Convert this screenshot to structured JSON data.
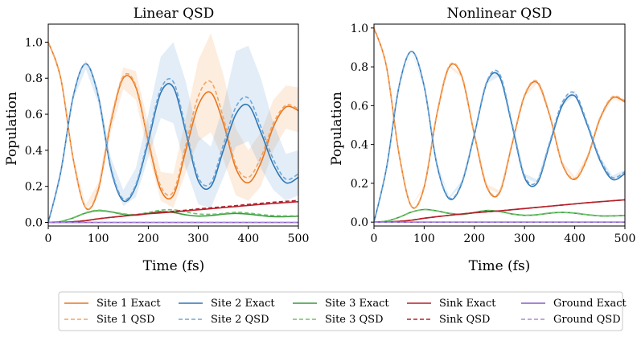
{
  "figure": {
    "legend": {
      "entries": [
        {
          "label": "Site 1 Exact",
          "series": "site1",
          "style": "solid"
        },
        {
          "label": "Site 1 QSD",
          "series": "site1",
          "style": "dashed"
        },
        {
          "label": "Site 2 Exact",
          "series": "site2",
          "style": "solid"
        },
        {
          "label": "Site 2 QSD",
          "series": "site2",
          "style": "dashed"
        },
        {
          "label": "Site 3 Exact",
          "series": "site3",
          "style": "solid"
        },
        {
          "label": "Site 3 QSD",
          "series": "site3",
          "style": "dashed"
        },
        {
          "label": "Sink Exact",
          "series": "sink",
          "style": "solid"
        },
        {
          "label": "Sink QSD",
          "series": "sink",
          "style": "dashed"
        },
        {
          "label": "Ground Exact",
          "series": "ground",
          "style": "solid"
        },
        {
          "label": "Ground QSD",
          "series": "ground",
          "style": "dashed"
        }
      ]
    }
  },
  "chart_data": [
    {
      "type": "line",
      "title": "Linear QSD",
      "xlabel": "Time (fs)",
      "ylabel": "Population",
      "xlim": [
        0,
        500
      ],
      "ylim": [
        -0.02,
        1.1
      ],
      "xticks": [
        "0",
        "100",
        "200",
        "300",
        "400",
        "500"
      ],
      "yticks": [
        "0.0",
        "0.2",
        "0.4",
        "0.6",
        "0.8",
        "1.0"
      ],
      "x": [
        0,
        25,
        50,
        75,
        100,
        125,
        150,
        175,
        200,
        225,
        250,
        275,
        300,
        325,
        350,
        375,
        400,
        425,
        450,
        475,
        500
      ],
      "series": [
        {
          "name": "Site 1 Exact",
          "key": "site1",
          "color": "#e8761f",
          "style": "solid",
          "values": [
            1.0,
            0.8,
            0.35,
            0.08,
            0.18,
            0.55,
            0.8,
            0.75,
            0.45,
            0.18,
            0.15,
            0.4,
            0.65,
            0.72,
            0.55,
            0.3,
            0.22,
            0.33,
            0.53,
            0.64,
            0.62
          ]
        },
        {
          "name": "Site 1 QSD",
          "key": "site1",
          "color": "#f4a460",
          "style": "dashed",
          "values": [
            1.0,
            0.8,
            0.35,
            0.08,
            0.19,
            0.56,
            0.81,
            0.76,
            0.46,
            0.2,
            0.17,
            0.43,
            0.7,
            0.78,
            0.58,
            0.32,
            0.25,
            0.36,
            0.55,
            0.65,
            0.63
          ],
          "band_lower": [
            1.0,
            0.79,
            0.34,
            0.07,
            0.15,
            0.5,
            0.74,
            0.68,
            0.38,
            0.12,
            0.08,
            0.28,
            0.45,
            0.5,
            0.35,
            0.15,
            0.12,
            0.2,
            0.4,
            0.52,
            0.5
          ],
          "band_upper": [
            1.0,
            0.81,
            0.36,
            0.1,
            0.22,
            0.6,
            0.86,
            0.84,
            0.55,
            0.28,
            0.27,
            0.58,
            0.9,
            1.05,
            0.82,
            0.52,
            0.4,
            0.5,
            0.68,
            0.76,
            0.75
          ]
        },
        {
          "name": "Site 2 Exact",
          "key": "site2",
          "color": "#2f77b5",
          "style": "solid",
          "values": [
            0.0,
            0.28,
            0.7,
            0.88,
            0.7,
            0.3,
            0.12,
            0.2,
            0.45,
            0.72,
            0.75,
            0.5,
            0.23,
            0.2,
            0.4,
            0.6,
            0.65,
            0.5,
            0.32,
            0.22,
            0.25
          ]
        },
        {
          "name": "Site 2 QSD",
          "key": "site2",
          "color": "#6ea6d9",
          "style": "dashed",
          "values": [
            0.0,
            0.28,
            0.7,
            0.88,
            0.7,
            0.31,
            0.13,
            0.21,
            0.47,
            0.74,
            0.78,
            0.52,
            0.25,
            0.22,
            0.43,
            0.64,
            0.69,
            0.53,
            0.35,
            0.24,
            0.27
          ],
          "band_lower": [
            0.0,
            0.27,
            0.68,
            0.85,
            0.66,
            0.26,
            0.09,
            0.14,
            0.36,
            0.58,
            0.55,
            0.3,
            0.1,
            0.08,
            0.25,
            0.42,
            0.45,
            0.3,
            0.18,
            0.12,
            0.15
          ],
          "band_upper": [
            0.0,
            0.3,
            0.72,
            0.9,
            0.74,
            0.36,
            0.18,
            0.3,
            0.6,
            0.92,
            1.0,
            0.78,
            0.48,
            0.42,
            0.65,
            0.95,
            0.98,
            0.8,
            0.55,
            0.38,
            0.4
          ]
        },
        {
          "name": "Site 3 Exact",
          "key": "site3",
          "color": "#3a9a3a",
          "style": "solid",
          "values": [
            0.0,
            0.005,
            0.025,
            0.052,
            0.065,
            0.058,
            0.045,
            0.04,
            0.05,
            0.06,
            0.055,
            0.042,
            0.035,
            0.038,
            0.046,
            0.05,
            0.046,
            0.038,
            0.032,
            0.032,
            0.034
          ]
        },
        {
          "name": "Site 3 QSD",
          "key": "site3",
          "color": "#6cc36c",
          "style": "dashed",
          "values": [
            0.0,
            0.005,
            0.026,
            0.054,
            0.068,
            0.06,
            0.048,
            0.044,
            0.055,
            0.068,
            0.07,
            0.058,
            0.047,
            0.045,
            0.05,
            0.056,
            0.052,
            0.044,
            0.038,
            0.036,
            0.036
          ]
        },
        {
          "name": "Sink Exact",
          "key": "sink",
          "color": "#b5202a",
          "style": "solid",
          "values": [
            0.0,
            0.001,
            0.004,
            0.01,
            0.02,
            0.028,
            0.035,
            0.042,
            0.048,
            0.053,
            0.058,
            0.064,
            0.07,
            0.076,
            0.082,
            0.088,
            0.094,
            0.1,
            0.105,
            0.11,
            0.115
          ]
        },
        {
          "name": "Sink QSD",
          "key": "sink",
          "color": "#b5202a",
          "style": "dashed",
          "values": [
            0.0,
            0.001,
            0.004,
            0.01,
            0.02,
            0.028,
            0.035,
            0.043,
            0.05,
            0.056,
            0.062,
            0.068,
            0.075,
            0.081,
            0.087,
            0.093,
            0.1,
            0.106,
            0.112,
            0.117,
            0.122
          ]
        },
        {
          "name": "Ground Exact",
          "key": "ground",
          "color": "#8a5cc9",
          "style": "solid",
          "values": [
            0.0,
            0.0,
            0.0,
            0.0,
            0.0,
            0.0,
            0.0,
            0.0,
            0.0,
            0.0,
            0.0,
            0.0,
            0.0,
            0.0,
            0.0,
            0.0,
            0.0,
            0.0,
            0.0,
            0.0,
            0.0
          ]
        },
        {
          "name": "Ground QSD",
          "key": "ground",
          "color": "#a58ad9",
          "style": "dashed",
          "values": [
            0.0,
            0.0,
            0.0,
            0.0,
            0.0,
            0.0,
            0.0,
            0.0,
            0.0,
            0.0,
            0.0,
            0.0,
            0.0,
            0.0,
            0.0,
            0.0,
            0.0,
            0.0,
            0.0,
            0.0,
            0.0
          ]
        }
      ]
    },
    {
      "type": "line",
      "title": "Nonlinear QSD",
      "xlabel": "Time (fs)",
      "ylabel": "Population",
      "xlim": [
        0,
        500
      ],
      "ylim": [
        -0.02,
        1.02
      ],
      "xticks": [
        "0",
        "100",
        "200",
        "300",
        "400",
        "500"
      ],
      "yticks": [
        "0.0",
        "0.2",
        "0.4",
        "0.6",
        "0.8",
        "1.0"
      ],
      "x": [
        0,
        25,
        50,
        75,
        100,
        125,
        150,
        175,
        200,
        225,
        250,
        275,
        300,
        325,
        350,
        375,
        400,
        425,
        450,
        475,
        500
      ],
      "series": [
        {
          "name": "Site 1 Exact",
          "key": "site1",
          "color": "#e8761f",
          "style": "solid",
          "values": [
            1.0,
            0.8,
            0.35,
            0.08,
            0.18,
            0.55,
            0.8,
            0.75,
            0.45,
            0.18,
            0.15,
            0.4,
            0.65,
            0.72,
            0.55,
            0.3,
            0.22,
            0.33,
            0.53,
            0.64,
            0.62
          ]
        },
        {
          "name": "Site 1 QSD",
          "key": "site1",
          "color": "#f4a460",
          "style": "dashed",
          "values": [
            1.0,
            0.8,
            0.35,
            0.08,
            0.185,
            0.555,
            0.805,
            0.755,
            0.455,
            0.185,
            0.155,
            0.405,
            0.655,
            0.725,
            0.555,
            0.305,
            0.225,
            0.335,
            0.535,
            0.645,
            0.625
          ],
          "band_lower": [
            1.0,
            0.798,
            0.348,
            0.078,
            0.178,
            0.546,
            0.796,
            0.745,
            0.444,
            0.176,
            0.146,
            0.394,
            0.644,
            0.714,
            0.544,
            0.296,
            0.216,
            0.325,
            0.524,
            0.634,
            0.614
          ],
          "band_upper": [
            1.0,
            0.802,
            0.352,
            0.084,
            0.19,
            0.562,
            0.812,
            0.763,
            0.464,
            0.194,
            0.164,
            0.414,
            0.664,
            0.734,
            0.564,
            0.314,
            0.234,
            0.344,
            0.544,
            0.654,
            0.634
          ]
        },
        {
          "name": "Site 2 Exact",
          "key": "site2",
          "color": "#2f77b5",
          "style": "solid",
          "values": [
            0.0,
            0.28,
            0.7,
            0.88,
            0.7,
            0.3,
            0.12,
            0.2,
            0.45,
            0.72,
            0.75,
            0.5,
            0.23,
            0.2,
            0.4,
            0.6,
            0.65,
            0.5,
            0.32,
            0.22,
            0.25
          ]
        },
        {
          "name": "Site 2 QSD",
          "key": "site2",
          "color": "#6ea6d9",
          "style": "dashed",
          "values": [
            0.0,
            0.28,
            0.7,
            0.88,
            0.7,
            0.305,
            0.125,
            0.205,
            0.455,
            0.725,
            0.765,
            0.51,
            0.24,
            0.21,
            0.41,
            0.615,
            0.665,
            0.51,
            0.33,
            0.23,
            0.26
          ],
          "band_lower": [
            0.0,
            0.278,
            0.698,
            0.876,
            0.694,
            0.298,
            0.118,
            0.196,
            0.445,
            0.714,
            0.752,
            0.498,
            0.23,
            0.2,
            0.398,
            0.602,
            0.652,
            0.498,
            0.32,
            0.22,
            0.25
          ],
          "band_upper": [
            0.0,
            0.282,
            0.702,
            0.884,
            0.706,
            0.312,
            0.132,
            0.214,
            0.465,
            0.736,
            0.778,
            0.522,
            0.25,
            0.22,
            0.422,
            0.628,
            0.678,
            0.522,
            0.34,
            0.24,
            0.27
          ]
        },
        {
          "name": "Site 3 Exact",
          "key": "site3",
          "color": "#3a9a3a",
          "style": "solid",
          "values": [
            0.0,
            0.005,
            0.025,
            0.052,
            0.065,
            0.058,
            0.045,
            0.04,
            0.05,
            0.06,
            0.055,
            0.042,
            0.035,
            0.038,
            0.046,
            0.05,
            0.046,
            0.038,
            0.032,
            0.032,
            0.034
          ]
        },
        {
          "name": "Site 3 QSD",
          "key": "site3",
          "color": "#6cc36c",
          "style": "dashed",
          "values": [
            0.0,
            0.005,
            0.025,
            0.052,
            0.065,
            0.058,
            0.046,
            0.041,
            0.05,
            0.06,
            0.056,
            0.043,
            0.036,
            0.039,
            0.047,
            0.05,
            0.047,
            0.039,
            0.033,
            0.033,
            0.034
          ]
        },
        {
          "name": "Sink Exact",
          "key": "sink",
          "color": "#b5202a",
          "style": "solid",
          "values": [
            0.0,
            0.001,
            0.004,
            0.01,
            0.02,
            0.028,
            0.035,
            0.042,
            0.048,
            0.053,
            0.058,
            0.064,
            0.07,
            0.076,
            0.082,
            0.088,
            0.094,
            0.1,
            0.105,
            0.11,
            0.115
          ]
        },
        {
          "name": "Sink QSD",
          "key": "sink",
          "color": "#b5202a",
          "style": "dashed",
          "values": [
            0.0,
            0.001,
            0.004,
            0.01,
            0.02,
            0.028,
            0.035,
            0.042,
            0.048,
            0.053,
            0.058,
            0.064,
            0.07,
            0.076,
            0.082,
            0.088,
            0.094,
            0.1,
            0.105,
            0.11,
            0.115
          ]
        },
        {
          "name": "Ground Exact",
          "key": "ground",
          "color": "#8a5cc9",
          "style": "solid",
          "values": [
            0.0,
            0.0,
            0.0,
            0.0,
            0.0,
            0.0,
            0.0,
            0.0,
            0.0,
            0.0,
            0.0,
            0.0,
            0.0,
            0.0,
            0.0,
            0.0,
            0.0,
            0.0,
            0.0,
            0.0,
            0.0
          ]
        },
        {
          "name": "Ground QSD",
          "key": "ground",
          "color": "#a58ad9",
          "style": "dashed",
          "values": [
            0.0,
            0.0,
            0.0,
            0.0,
            0.0,
            0.0,
            0.0,
            0.0,
            0.0,
            0.0,
            0.0,
            0.0,
            0.0,
            0.0,
            0.0,
            0.0,
            0.0,
            0.0,
            0.0,
            0.0,
            0.0
          ]
        }
      ]
    }
  ]
}
